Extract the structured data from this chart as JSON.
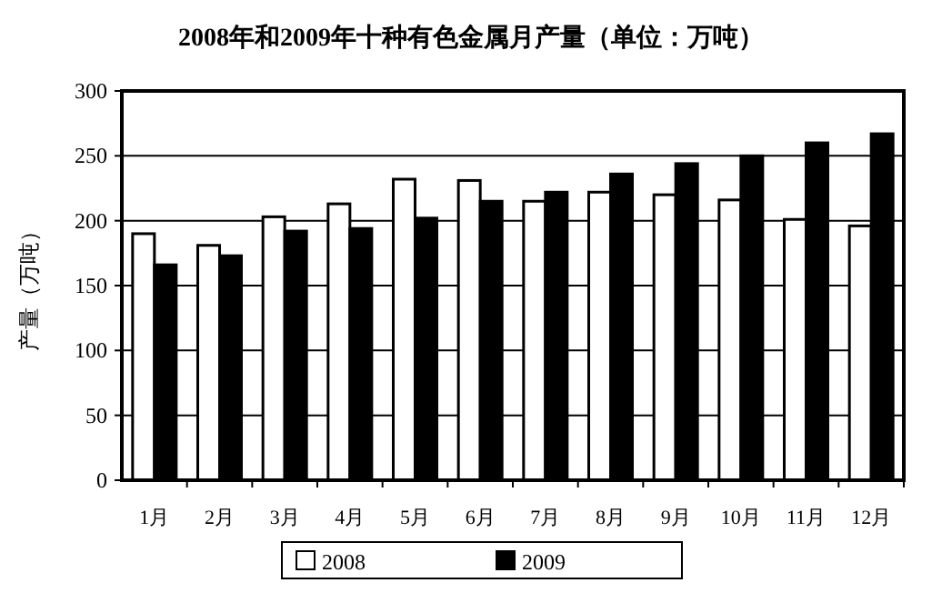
{
  "chart_data": {
    "type": "bar",
    "title": "2008年和2009年十种有色金属月产量（单位：万吨）",
    "ylabel": "产量（万吨）",
    "categories": [
      "1月",
      "2月",
      "3月",
      "4月",
      "5月",
      "6月",
      "7月",
      "8月",
      "9月",
      "10月",
      "11月",
      "12月"
    ],
    "series": [
      {
        "name": "2008",
        "color": "#ffffff",
        "values": [
          190,
          181,
          203,
          213,
          232,
          231,
          215,
          222,
          220,
          216,
          201,
          196
        ]
      },
      {
        "name": "2009",
        "color": "#000000",
        "values": [
          166,
          173,
          192,
          194,
          202,
          215,
          222,
          236,
          244,
          250,
          260,
          267
        ]
      }
    ],
    "ylim": [
      0,
      300
    ],
    "yticks": [
      0,
      50,
      100,
      150,
      200,
      250,
      300
    ],
    "grid": "y",
    "legend": "bottom"
  }
}
